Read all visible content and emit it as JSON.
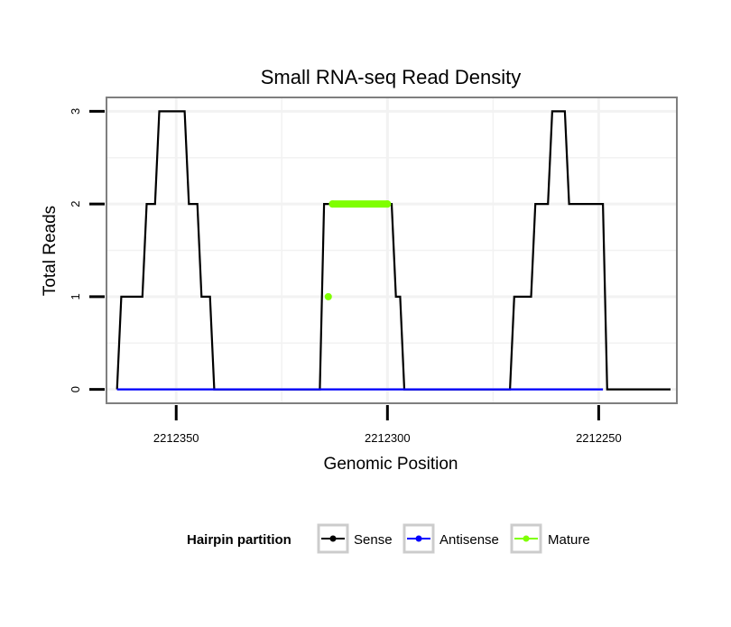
{
  "chart_data": {
    "type": "line",
    "title": "Small RNA-seq Read Density",
    "xlabel": "Genomic Position",
    "ylabel": "Total Reads",
    "x_reversed": true,
    "xlim": [
      2212366.5,
      2212231.5
    ],
    "ylim": [
      -0.15,
      3.15
    ],
    "x_ticks": [
      2212350,
      2212300,
      2212250
    ],
    "x_tick_labels": [
      "2212350",
      "2212300",
      "2212250"
    ],
    "y_ticks": [
      0,
      1,
      2,
      3
    ],
    "y_tick_labels": [
      "0",
      "1",
      "2",
      "3"
    ],
    "grid": true,
    "legend_position": "bottom",
    "legend_title": "Hairpin partition",
    "series": [
      {
        "name": "Sense",
        "color": "#000000",
        "points": [
          [
            2212364,
            0
          ],
          [
            2212363,
            1
          ],
          [
            2212358,
            1
          ],
          [
            2212357,
            2
          ],
          [
            2212355,
            2
          ],
          [
            2212354,
            3
          ],
          [
            2212348,
            3
          ],
          [
            2212347,
            2
          ],
          [
            2212345,
            2
          ],
          [
            2212344,
            1
          ],
          [
            2212342,
            1
          ],
          [
            2212341,
            0
          ],
          [
            2212316,
            0
          ],
          [
            2212315,
            2
          ],
          [
            2212299,
            2
          ],
          [
            2212298,
            1
          ],
          [
            2212297,
            1
          ],
          [
            2212296,
            0
          ],
          [
            2212271,
            0
          ],
          [
            2212270,
            1
          ],
          [
            2212266,
            1
          ],
          [
            2212265,
            2
          ],
          [
            2212262,
            2
          ],
          [
            2212261,
            3
          ],
          [
            2212258,
            3
          ],
          [
            2212257,
            2
          ],
          [
            2212249,
            2
          ],
          [
            2212248,
            0
          ],
          [
            2212233,
            0
          ]
        ]
      },
      {
        "name": "Antisense",
        "color": "#0000ff",
        "points": [
          [
            2212364,
            0
          ],
          [
            2212249,
            0
          ]
        ]
      },
      {
        "name": "Mature",
        "color": "#7fff00",
        "points": [
          [
            2212314,
            1
          ],
          [
            2212313,
            2
          ],
          [
            2212300,
            2
          ]
        ]
      }
    ]
  }
}
